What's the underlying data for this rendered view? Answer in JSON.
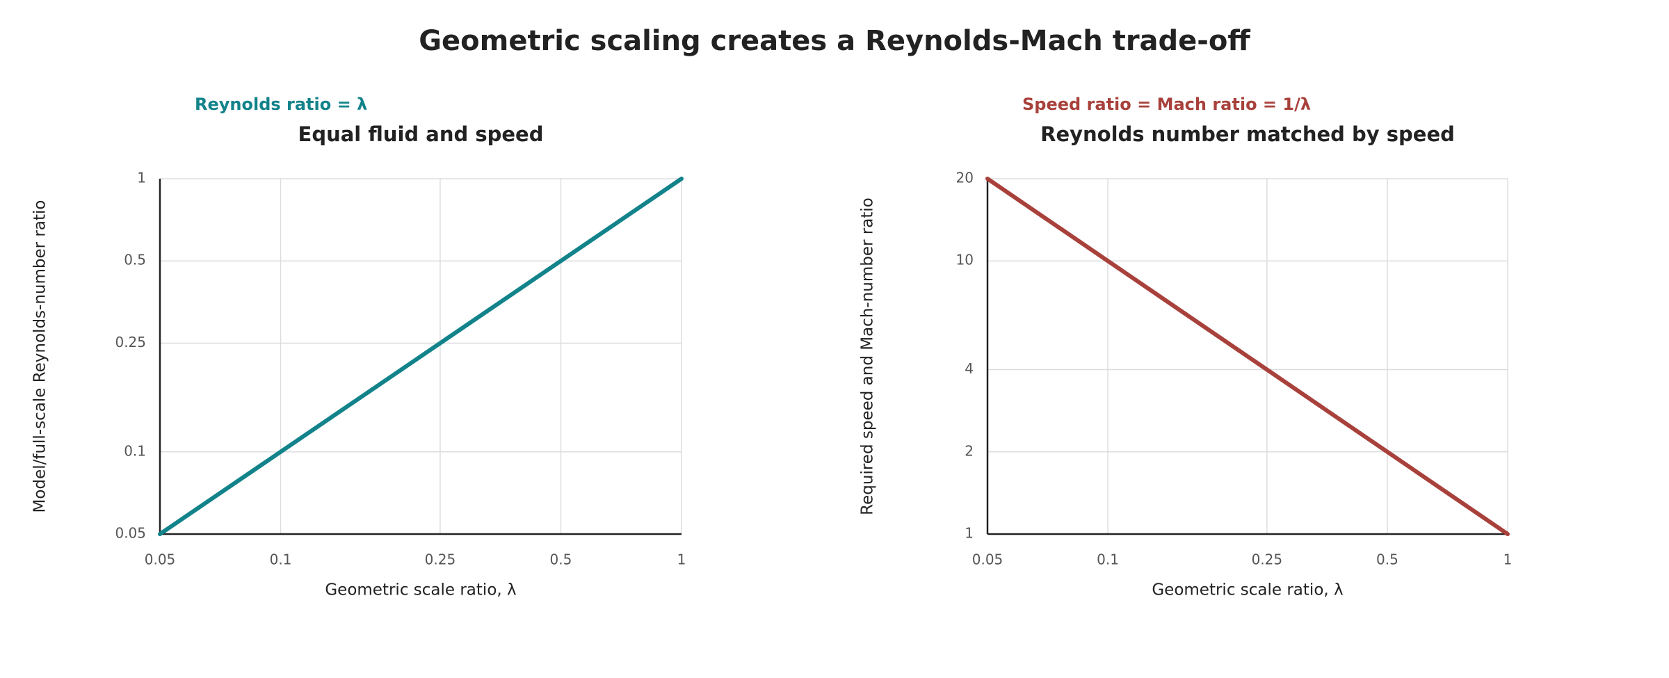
{
  "title": "Geometric scaling creates a Reynolds-Mach trade-off",
  "chart_data": [
    {
      "type": "line",
      "annotation": "Reynolds ratio = λ",
      "annotation_color": "#12838a",
      "subtitle": "Equal fluid and speed",
      "x_label": "Geometric scale ratio, λ",
      "y_label": "Model/full-scale Reynolds-number ratio",
      "x": [
        0.05,
        0.1,
        0.25,
        0.5,
        1
      ],
      "series": [
        {
          "color": "#12838a",
          "values": [
            0.05,
            0.1,
            0.25,
            0.5,
            1
          ]
        }
      ],
      "x_log": true,
      "y_log": true,
      "grid": true,
      "xlim": [
        0.05,
        1
      ],
      "ylim": [
        0.05,
        1
      ],
      "xticks": [
        0.05,
        0.1,
        0.25,
        0.5,
        1
      ],
      "yticks": [
        0.05,
        0.1,
        0.25,
        0.5,
        1
      ]
    },
    {
      "type": "line",
      "annotation": "Speed ratio = Mach ratio = 1/λ",
      "annotation_color": "#a8413b",
      "subtitle": "Reynolds number matched by speed",
      "x_label": "Geometric scale ratio, λ",
      "y_label": "Required speed and Mach-number ratio",
      "x": [
        0.05,
        0.1,
        0.25,
        0.5,
        1
      ],
      "series": [
        {
          "color": "#a8413b",
          "values": [
            20,
            10,
            4,
            2,
            1
          ]
        }
      ],
      "x_log": true,
      "y_log": true,
      "grid": true,
      "xlim": [
        0.05,
        1
      ],
      "ylim": [
        1,
        20
      ],
      "xticks": [
        0.05,
        0.1,
        0.25,
        0.5,
        1
      ],
      "yticks": [
        1,
        2,
        4,
        10,
        20
      ]
    }
  ]
}
